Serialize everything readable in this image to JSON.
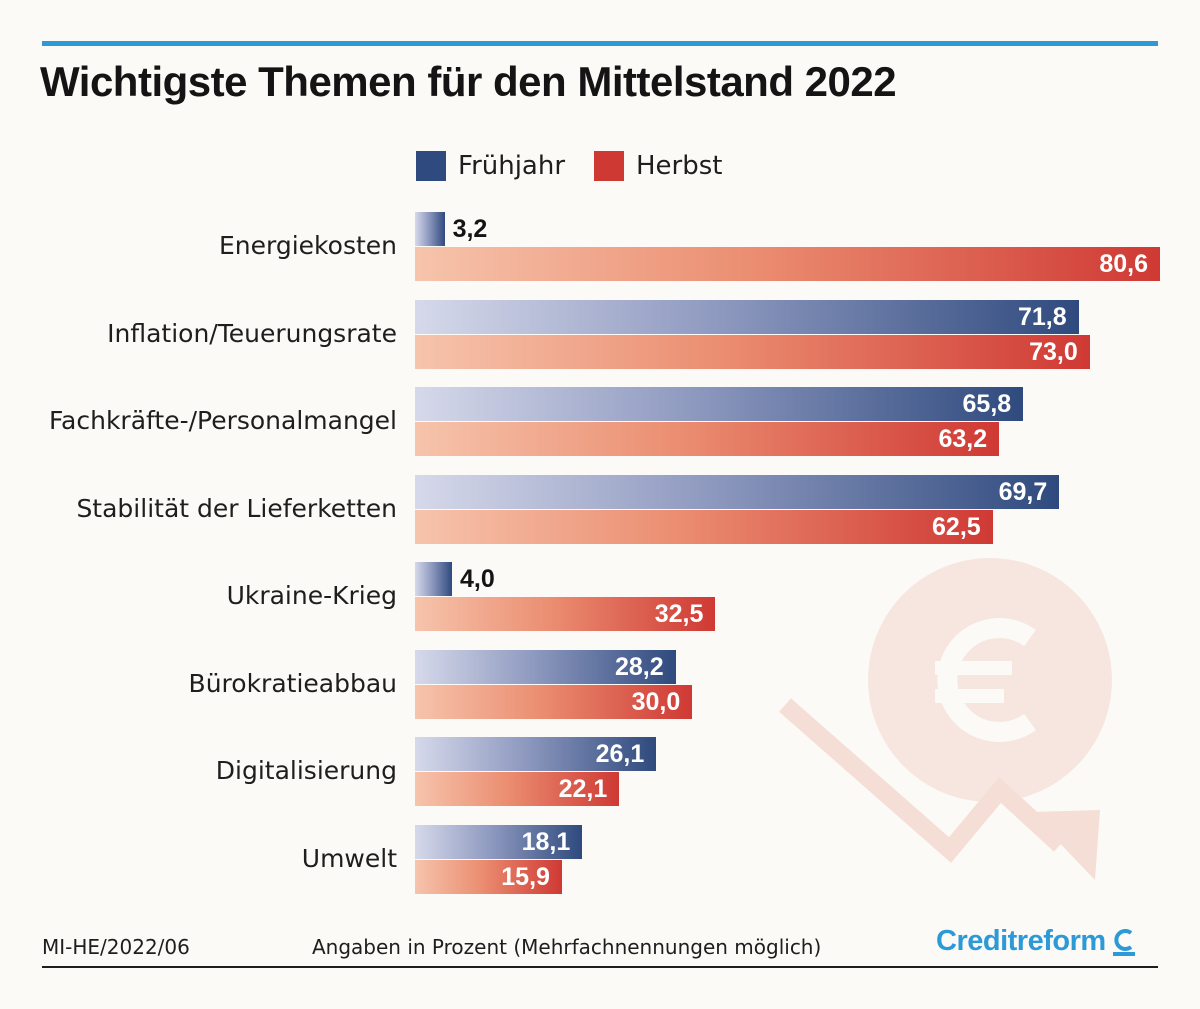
{
  "title": "Wichtigste Themen für den Mittelstand 2022",
  "colors": {
    "accent": "#2c9ad6",
    "spring": "#2f4a7e",
    "autumn": "#cf3934"
  },
  "footer": {
    "source": "MI-HE/2022/06",
    "note": "Angaben in Prozent  (Mehrfachnennungen möglich)",
    "brand": "Creditreform"
  },
  "chart_data": {
    "type": "bar",
    "orientation": "horizontal",
    "title": "Wichtigste Themen für den Mittelstand 2022",
    "xlim": [
      0,
      80.6
    ],
    "grid": false,
    "legend_position": "top",
    "categories": [
      "Energiekosten",
      "Inflation/Teuerungsrate",
      "Fachkräfte-/Personalmangel",
      "Stabilität der Lieferketten",
      "Ukraine-Krieg",
      "Bürokratieabbau",
      "Digitalisierung",
      "Umwelt"
    ],
    "series": [
      {
        "name": "Frühjahr",
        "values": [
          3.2,
          71.8,
          65.8,
          69.7,
          4.0,
          28.2,
          26.1,
          18.1
        ],
        "labels": [
          "3,2",
          "71,8",
          "65,8",
          "69,7",
          "4,0",
          "28,2",
          "26,1",
          "18,1"
        ]
      },
      {
        "name": "Herbst",
        "values": [
          80.6,
          73.0,
          63.2,
          62.5,
          32.5,
          30.0,
          22.1,
          15.9
        ],
        "labels": [
          "80,6",
          "73,0",
          "63,2",
          "62,5",
          "32,5",
          "30,0",
          "22,1",
          "15,9"
        ]
      }
    ]
  }
}
